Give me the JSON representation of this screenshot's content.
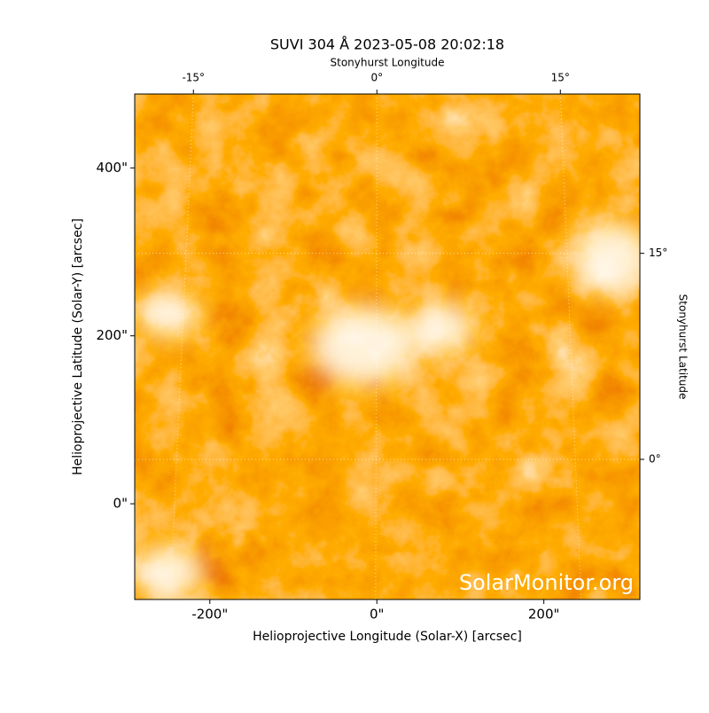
{
  "chart_data": {
    "type": "image",
    "title": "SUVI 304 Å 2023-05-08 20:02:18",
    "top_axis_label": "Stonyhurst Longitude",
    "right_axis_label": "Stonyhurst Latitude",
    "x_label": "Helioprojective Longitude (Solar-X) [arcsec]",
    "y_label": "Helioprojective Latitude (Solar-Y) [arcsec]",
    "watermark": "SolarMonitor.org",
    "xlim": [
      -290,
      315
    ],
    "ylim": [
      -114,
      488
    ],
    "xticks": [
      {
        "value": -200,
        "label": "-200\""
      },
      {
        "value": 0,
        "label": "0\""
      },
      {
        "value": 200,
        "label": "200\""
      }
    ],
    "yticks": [
      {
        "value": 0,
        "label": "0\""
      },
      {
        "value": 200,
        "label": "200\""
      },
      {
        "value": 400,
        "label": "400\""
      }
    ],
    "top_xlim": [
      -19.8,
      21.5
    ],
    "top_xticks": [
      {
        "value": -15,
        "label": "-15°"
      },
      {
        "value": 0,
        "label": "0°"
      },
      {
        "value": 15,
        "label": "15°"
      }
    ],
    "right_ylim": [
      -10.2,
      26.6
    ],
    "right_yticks": [
      {
        "value": 0,
        "label": "0°"
      },
      {
        "value": 15,
        "label": "15°"
      }
    ]
  }
}
